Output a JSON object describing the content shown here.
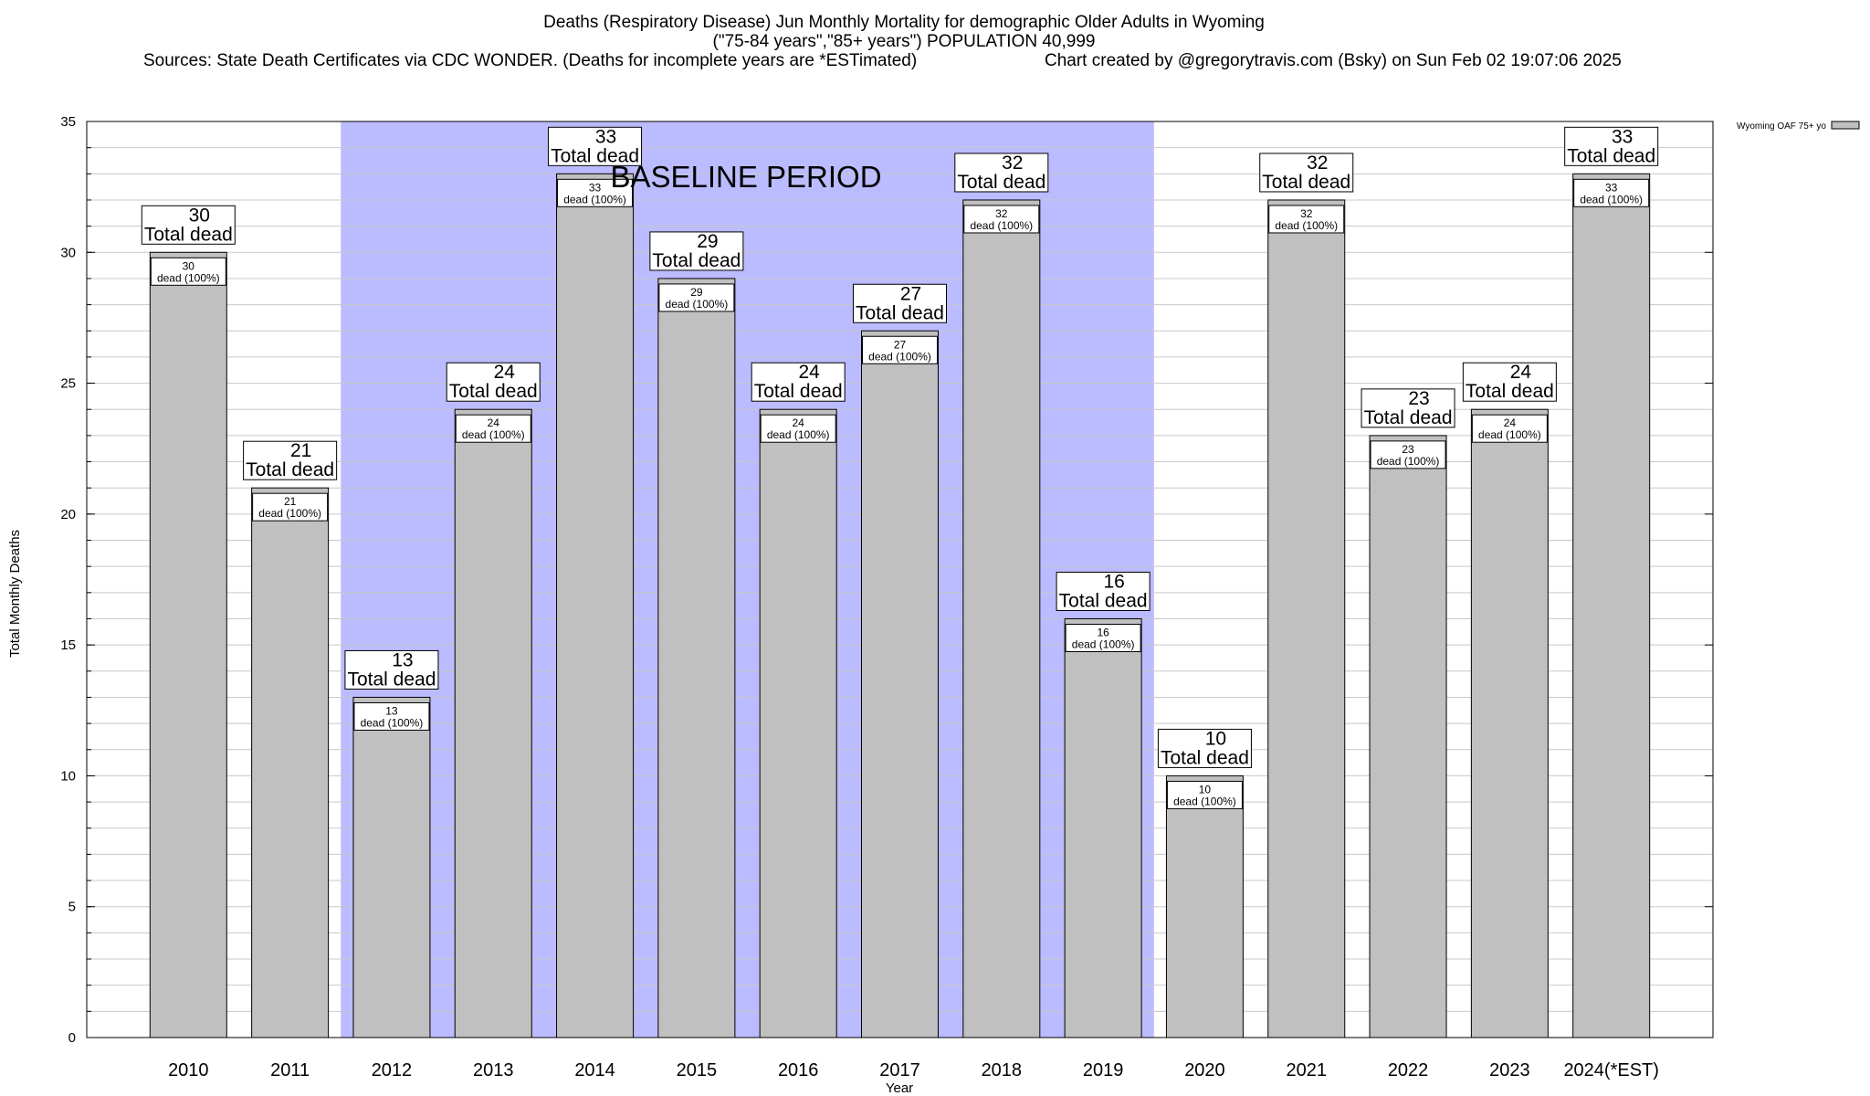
{
  "header": {
    "title_line1": "Deaths (Respiratory Disease) Jun Monthly Mortality for demographic Older Adults in Wyoming",
    "title_line2": "(\"75-84 years\",\"85+ years\") POPULATION 40,999",
    "sources": "Sources: State Death Certificates via CDC WONDER. (Deaths for incomplete years are *ESTimated)",
    "credit": "Chart created by @gregorytravis.com (Bsky) on Sun Feb 02 19:07:06 2025"
  },
  "chart_data": {
    "type": "bar",
    "categories": [
      "2010",
      "2011",
      "2012",
      "2013",
      "2014",
      "2015",
      "2016",
      "2017",
      "2018",
      "2019",
      "2020",
      "2021",
      "2022",
      "2023",
      "2024(*EST)"
    ],
    "series": [
      {
        "name": "Wyoming OAF 75+ yo",
        "values": [
          30,
          21,
          13,
          24,
          33,
          29,
          24,
          27,
          32,
          16,
          10,
          32,
          23,
          24,
          33
        ]
      }
    ],
    "xlabel": "Year",
    "ylabel": "Total Monthly Deaths",
    "ylim": [
      0,
      35
    ],
    "yticks": [
      0,
      5,
      10,
      15,
      20,
      25,
      30,
      35
    ],
    "minor_gridlines_per_major": 5,
    "grid": true,
    "legend_position": "top-right",
    "bar_label_main_suffix": "Total dead",
    "bar_label_inner_suffix": "dead (100%)",
    "baseline_period": {
      "label": "BASELINE PERIOD",
      "from": "2012",
      "to": "2019"
    },
    "colors": {
      "bar": "#c0c0c0",
      "baseline": "#bbbbff",
      "grid": "#c8c8c8"
    }
  }
}
